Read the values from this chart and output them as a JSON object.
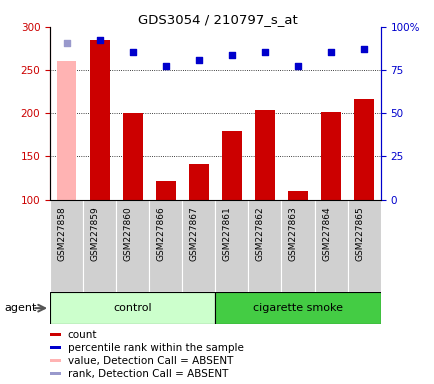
{
  "title": "GDS3054 / 210797_s_at",
  "samples": [
    "GSM227858",
    "GSM227859",
    "GSM227860",
    "GSM227866",
    "GSM227867",
    "GSM227861",
    "GSM227862",
    "GSM227863",
    "GSM227864",
    "GSM227865"
  ],
  "count_values": [
    null,
    285,
    200,
    122,
    141,
    180,
    204,
    110,
    201,
    217
  ],
  "count_absent": [
    260,
    null,
    null,
    null,
    null,
    null,
    null,
    null,
    null,
    null
  ],
  "percentile_values": [
    null,
    285,
    271,
    255,
    262,
    268,
    271,
    255,
    271,
    274
  ],
  "percentile_absent": [
    281,
    null,
    null,
    null,
    null,
    null,
    null,
    null,
    null,
    null
  ],
  "groups": [
    "control",
    "control",
    "control",
    "control",
    "control",
    "cigarette smoke",
    "cigarette smoke",
    "cigarette smoke",
    "cigarette smoke",
    "cigarette smoke"
  ],
  "ylim_left": [
    100,
    300
  ],
  "ylim_right": [
    0,
    100
  ],
  "yticks_left": [
    100,
    150,
    200,
    250,
    300
  ],
  "yticks_right": [
    0,
    25,
    50,
    75,
    100
  ],
  "ytick_labels_right": [
    "0",
    "25",
    "50",
    "75",
    "100%"
  ],
  "bar_color_normal": "#cc0000",
  "bar_color_absent": "#ffb3b3",
  "scatter_color_normal": "#0000cc",
  "scatter_color_absent": "#9999cc",
  "control_bg": "#ccffcc",
  "smoke_bg": "#44cc44",
  "agent_label": "agent",
  "legend_items": [
    {
      "color": "#cc0000",
      "label": "count"
    },
    {
      "color": "#0000cc",
      "label": "percentile rank within the sample"
    },
    {
      "color": "#ffb3b3",
      "label": "value, Detection Call = ABSENT"
    },
    {
      "color": "#9999cc",
      "label": "rank, Detection Call = ABSENT"
    }
  ]
}
